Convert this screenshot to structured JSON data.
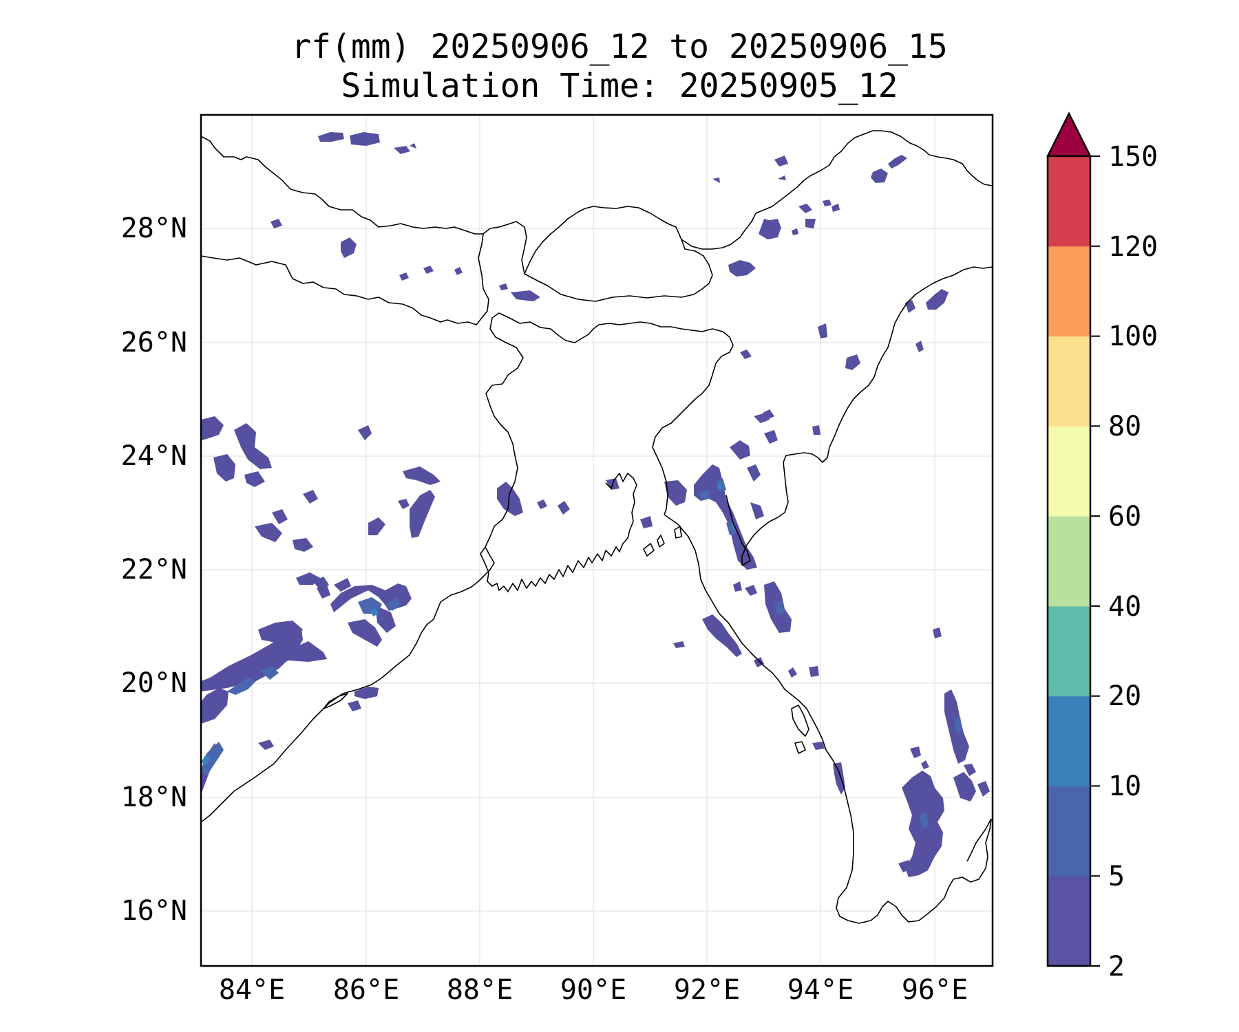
{
  "title": {
    "line1": "rf(mm) 20250906_12 to 20250906_15",
    "line2": "Simulation Time: 20250905_12"
  },
  "map": {
    "lon_range": [
      83.1,
      97.0
    ],
    "lat_range": [
      15.0,
      30.0
    ],
    "lon_ticks": [
      "84°E",
      "86°E",
      "88°E",
      "90°E",
      "92°E",
      "94°E",
      "96°E"
    ],
    "lat_ticks": [
      "16°N",
      "18°N",
      "20°N",
      "22°N",
      "24°N",
      "26°N",
      "28°N"
    ],
    "gridlines": true,
    "features": [
      "coastline",
      "country borders"
    ]
  },
  "colorbar": {
    "levels": [
      "2",
      "5",
      "10",
      "20",
      "40",
      "60",
      "80",
      "100",
      "120",
      "150"
    ],
    "colors": [
      "#5a53a3",
      "#4b64ae",
      "#3a80bb",
      "#60bcaa",
      "#b9e19d",
      "#f3faad",
      "#fbdf8c",
      "#f99d58",
      "#d6404e",
      "#9e0142"
    ],
    "extend": "max"
  },
  "rain_colors": {
    "light": "#5550a0",
    "moderate": "#4a66ae",
    "heavy": "#3a82bc"
  }
}
